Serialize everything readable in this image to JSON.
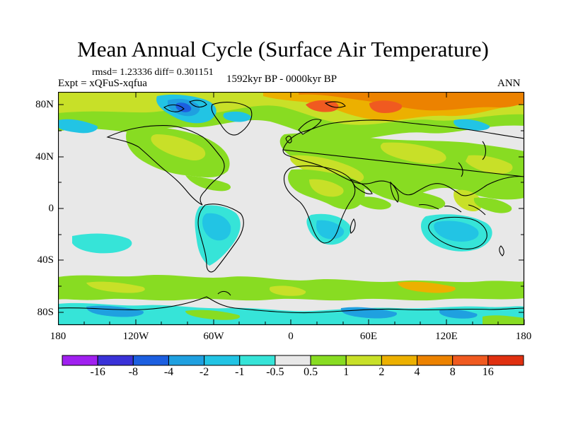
{
  "title": "Mean Annual Cycle (Surface Air Temperature)",
  "stats": "rmsd= 1.23336 diff= 0.301151",
  "experiment": "Expt = xQFuS-xqfua",
  "period": "1592kyr BP - 0000kyr BP",
  "season": "ANN",
  "y_axis_labels": [
    "80N",
    "40N",
    "0",
    "40S",
    "80S"
  ],
  "x_axis_labels": [
    "180",
    "120W",
    "60W",
    "0",
    "60E",
    "120E",
    "180"
  ],
  "colorbar": {
    "boundary_labels": [
      "-16",
      "-8",
      "-4",
      "-2",
      "-1",
      "-0.5",
      "0.5",
      "1",
      "2",
      "4",
      "8",
      "16"
    ],
    "colors": [
      "#a020f0",
      "#3a32d8",
      "#1c5fe0",
      "#1fa0e0",
      "#22c4e4",
      "#36e4d8",
      "#e8e8e8",
      "#88dc22",
      "#c8e028",
      "#ecb000",
      "#ec8200",
      "#f05a20",
      "#e03010"
    ]
  },
  "chart_data": {
    "type": "map-contour",
    "title": "Mean Annual Cycle (Surface Air Temperature)",
    "subtitle": "1592kyr BP - 0000kyr BP",
    "variable": "Surface Air Temperature difference",
    "experiment": "xQFuS-xqfua",
    "season": "ANN",
    "rmsd": 1.23336,
    "diff": 0.301151,
    "x_range": [
      -180,
      180
    ],
    "y_range": [
      -90,
      90
    ],
    "contour_levels": [
      -16,
      -8,
      -4,
      -2,
      -1,
      -0.5,
      0.5,
      1,
      2,
      4,
      8,
      16
    ]
  }
}
